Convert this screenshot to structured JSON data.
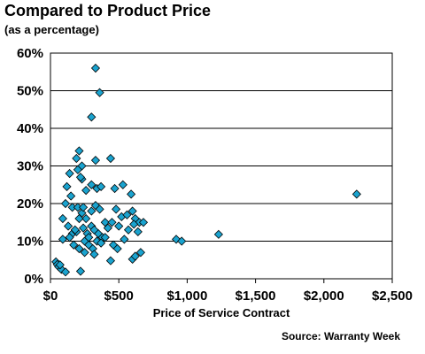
{
  "title": "Compared to Product Price",
  "subtitle": "(as a percentage)",
  "source": "Source: Warranty Week",
  "chart_data": {
    "type": "scatter",
    "title": "Compared to Product Price",
    "subtitle": "(as a percentage)",
    "xlabel": "Price of Service Contract",
    "ylabel": "",
    "xlim": [
      0,
      2500
    ],
    "ylim": [
      0,
      60
    ],
    "x_ticks": [
      0,
      500,
      1000,
      1500,
      2000,
      2500
    ],
    "x_tick_labels": [
      "$0",
      "$500",
      "$1,000",
      "$1,500",
      "$2,000",
      "$2,500"
    ],
    "y_ticks": [
      0,
      10,
      20,
      30,
      40,
      50,
      60
    ],
    "y_tick_labels": [
      "0%",
      "10%",
      "20%",
      "30%",
      "40%",
      "50%",
      "60%"
    ],
    "grid": "horizontal",
    "legend": "none",
    "marker": "diamond",
    "marker_color": "#1aa3cf",
    "series": [
      {
        "points": [
          [
            330,
            56
          ],
          [
            360,
            49.5
          ],
          [
            300,
            43
          ],
          [
            440,
            32
          ],
          [
            330,
            31.5
          ],
          [
            230,
            30
          ],
          [
            190,
            32
          ],
          [
            210,
            34
          ],
          [
            200,
            29
          ],
          [
            140,
            28
          ],
          [
            230,
            26.5
          ],
          [
            260,
            23.5
          ],
          [
            220,
            27
          ],
          [
            300,
            25
          ],
          [
            340,
            24
          ],
          [
            370,
            24.5
          ],
          [
            470,
            24
          ],
          [
            530,
            25
          ],
          [
            590,
            22.5
          ],
          [
            120,
            24.5
          ],
          [
            150,
            22
          ],
          [
            90,
            16
          ],
          [
            110,
            20
          ],
          [
            160,
            19
          ],
          [
            200,
            19
          ],
          [
            230,
            17.5
          ],
          [
            260,
            16
          ],
          [
            300,
            18
          ],
          [
            330,
            19.5
          ],
          [
            360,
            18.5
          ],
          [
            400,
            15
          ],
          [
            480,
            18.5
          ],
          [
            520,
            16.5
          ],
          [
            560,
            17
          ],
          [
            600,
            18
          ],
          [
            620,
            16
          ],
          [
            650,
            15
          ],
          [
            680,
            15
          ],
          [
            130,
            14
          ],
          [
            160,
            12
          ],
          [
            190,
            12.5
          ],
          [
            240,
            13.5
          ],
          [
            270,
            12
          ],
          [
            300,
            14
          ],
          [
            350,
            12
          ],
          [
            380,
            11
          ],
          [
            420,
            13.5
          ],
          [
            450,
            15
          ],
          [
            500,
            14
          ],
          [
            540,
            10.5
          ],
          [
            570,
            13
          ],
          [
            610,
            14.5
          ],
          [
            640,
            12.5
          ],
          [
            90,
            10.5
          ],
          [
            140,
            11
          ],
          [
            170,
            9
          ],
          [
            210,
            8
          ],
          [
            250,
            10
          ],
          [
            280,
            9
          ],
          [
            310,
            8
          ],
          [
            340,
            10
          ],
          [
            370,
            9.5
          ],
          [
            400,
            11
          ],
          [
            460,
            9
          ],
          [
            490,
            8
          ],
          [
            250,
            7
          ],
          [
            320,
            6.5
          ],
          [
            440,
            4.8
          ],
          [
            600,
            5.2
          ],
          [
            620,
            6
          ],
          [
            660,
            7
          ],
          [
            40,
            4.5
          ],
          [
            50,
            3.8
          ],
          [
            60,
            3.2
          ],
          [
            80,
            2.5
          ],
          [
            110,
            1.8
          ],
          [
            220,
            2
          ],
          [
            70,
            3.7
          ],
          [
            920,
            10.5
          ],
          [
            960,
            10
          ],
          [
            1230,
            11.8
          ],
          [
            2240,
            22.5
          ],
          [
            180,
            13
          ],
          [
            210,
            16
          ],
          [
            240,
            19
          ],
          [
            280,
            11
          ],
          [
            320,
            13
          ]
        ]
      }
    ]
  }
}
